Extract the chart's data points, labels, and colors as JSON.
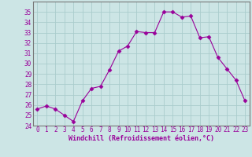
{
  "x": [
    0,
    1,
    2,
    3,
    4,
    5,
    6,
    7,
    8,
    9,
    10,
    11,
    12,
    13,
    14,
    15,
    16,
    17,
    18,
    19,
    20,
    21,
    22,
    23
  ],
  "y": [
    25.6,
    25.9,
    25.6,
    25.0,
    24.4,
    26.4,
    27.6,
    27.8,
    29.4,
    31.2,
    31.7,
    33.1,
    33.0,
    33.0,
    35.0,
    35.0,
    34.5,
    34.6,
    32.5,
    32.6,
    30.6,
    29.5,
    28.4,
    26.4
  ],
  "line_color": "#990099",
  "marker": "D",
  "marker_size": 2.5,
  "bg_color": "#cce5e5",
  "grid_color": "#aacccc",
  "xlabel": "Windchill (Refroidissement éolien,°C)",
  "xlabel_color": "#990099",
  "tick_color": "#990099",
  "spine_color": "#777777",
  "ylim": [
    24,
    36
  ],
  "xlim": [
    -0.5,
    23.5
  ],
  "yticks": [
    24,
    25,
    26,
    27,
    28,
    29,
    30,
    31,
    32,
    33,
    34,
    35
  ],
  "xticks": [
    0,
    1,
    2,
    3,
    4,
    5,
    6,
    7,
    8,
    9,
    10,
    11,
    12,
    13,
    14,
    15,
    16,
    17,
    18,
    19,
    20,
    21,
    22,
    23
  ],
  "tick_fontsize": 5.5,
  "xlabel_fontsize": 6.0
}
